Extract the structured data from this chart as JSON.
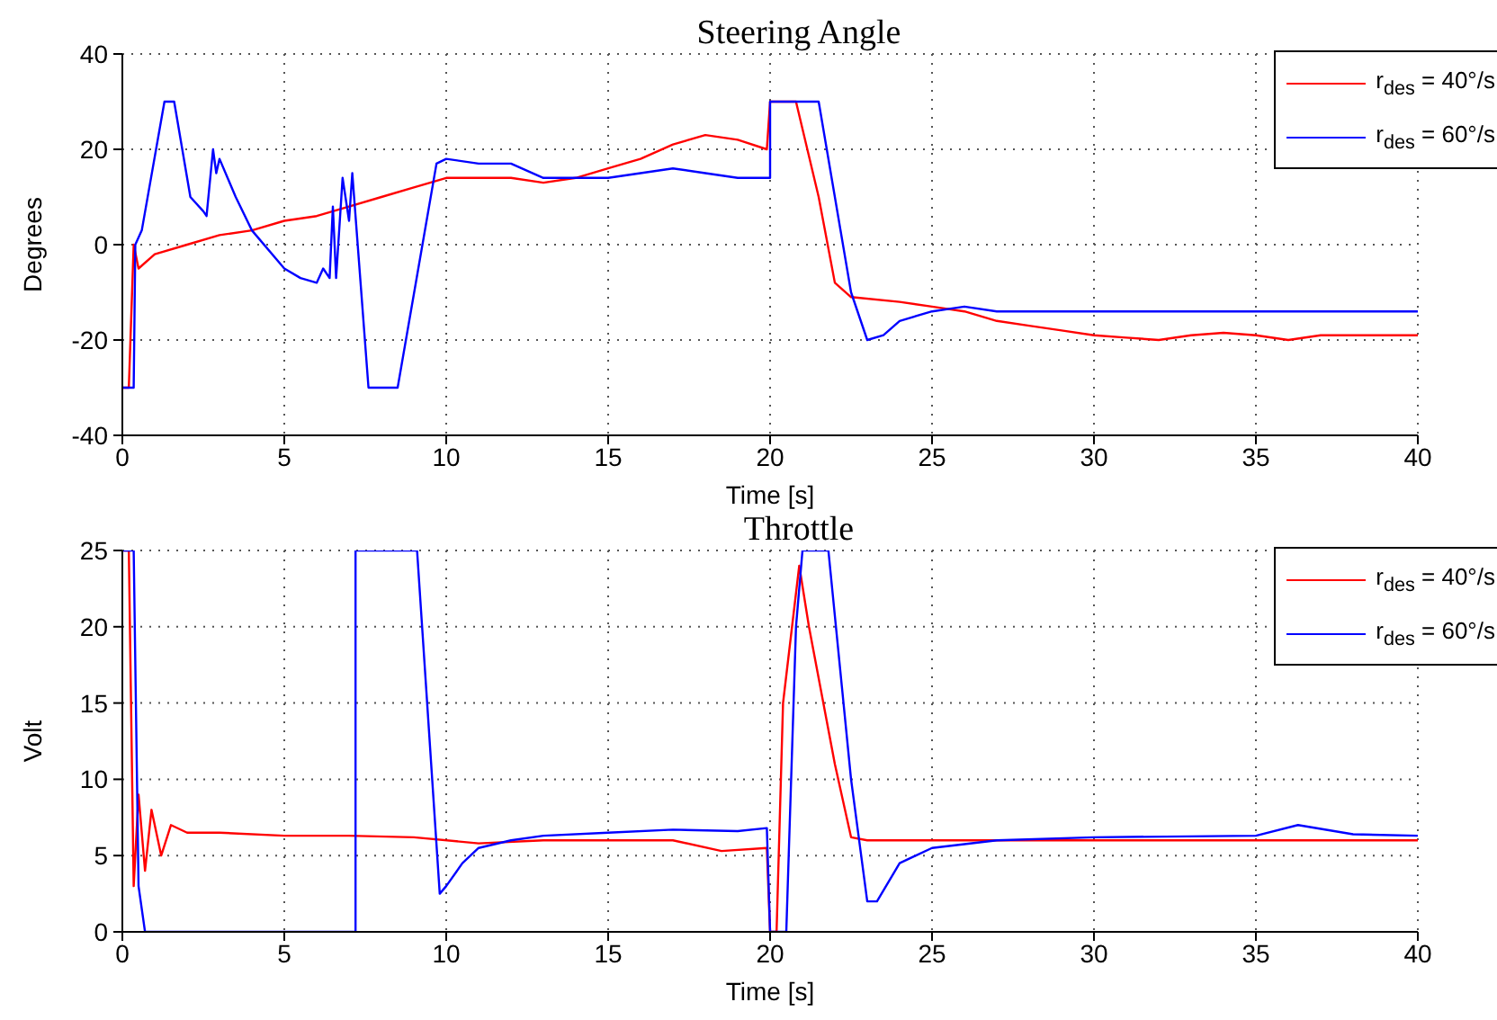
{
  "chart_data": [
    {
      "type": "line",
      "title": "Steering Angle",
      "xlabel": "Time [s]",
      "ylabel": "Degrees",
      "xlim": [
        0,
        40
      ],
      "xticks": [
        0,
        5,
        10,
        15,
        20,
        25,
        30,
        35,
        40
      ],
      "ylim": [
        -40,
        40
      ],
      "yticks": [
        -40,
        -20,
        0,
        20,
        40
      ],
      "grid": true,
      "legend": "top right",
      "marker": "none",
      "line_style": "solid",
      "series": [
        {
          "name": "r$_{des}$ = 40°/s",
          "color": "#ff0000",
          "x": [
            0,
            0.2,
            0.35,
            0.5,
            1,
            2,
            3,
            4,
            5,
            6,
            7,
            8,
            9,
            10,
            11,
            12,
            13,
            14,
            15,
            16,
            17,
            18,
            19,
            19.9,
            20,
            20.8,
            21.5,
            22,
            22.5,
            24,
            25,
            26,
            27,
            28,
            29,
            30,
            31,
            32,
            33,
            34,
            35,
            36,
            37,
            38,
            39,
            40
          ],
          "values": [
            -30,
            -30,
            0,
            -5,
            -2,
            0,
            2,
            3,
            5,
            6,
            8,
            10,
            12,
            14,
            14,
            14,
            13,
            14,
            16,
            18,
            21,
            23,
            22,
            20,
            30,
            30,
            10,
            -8,
            -11,
            -12,
            -13,
            -14,
            -16,
            -17,
            -18,
            -19,
            -19.5,
            -20,
            -19,
            -18.5,
            -19,
            -20,
            -19,
            -19,
            -19,
            -19
          ]
        },
        {
          "name": "r$_{des}$ = 60°/s",
          "color": "#0000ff",
          "x": [
            0,
            0.35,
            0.4,
            0.6,
            1.3,
            1.6,
            2.1,
            2.5,
            2.6,
            2.8,
            2.9,
            3,
            3.5,
            4,
            5,
            5.5,
            6,
            6.2,
            6.4,
            6.5,
            6.6,
            6.8,
            7,
            7.1,
            7.6,
            8.5,
            9.7,
            10,
            11,
            12,
            13,
            14,
            15,
            16,
            17,
            18,
            19,
            20,
            20,
            21.5,
            22,
            22.5,
            23,
            23.5,
            24,
            25,
            26,
            27,
            30,
            32,
            35,
            38,
            40
          ],
          "values": [
            -30,
            -30,
            0,
            3,
            30,
            30,
            10,
            7,
            6,
            20,
            15,
            18,
            10,
            3,
            -5,
            -7,
            -8,
            -5,
            -7,
            8,
            -7,
            14,
            5,
            15,
            -30,
            -30,
            17,
            18,
            17,
            17,
            14,
            14,
            14,
            15,
            16,
            15,
            14,
            14,
            30,
            30,
            10,
            -10,
            -20,
            -19,
            -16,
            -14,
            -13,
            -14,
            -14,
            -14,
            -14,
            -14,
            -14
          ]
        }
      ]
    },
    {
      "type": "line",
      "title": "Throttle",
      "xlabel": "Time [s]",
      "ylabel": "Volt",
      "xlim": [
        0,
        40
      ],
      "xticks": [
        0,
        5,
        10,
        15,
        20,
        25,
        30,
        35,
        40
      ],
      "ylim": [
        0,
        25
      ],
      "yticks": [
        0,
        5,
        10,
        15,
        20,
        25
      ],
      "grid": true,
      "legend": "top right",
      "marker": "none",
      "line_style": "solid",
      "series": [
        {
          "name": "r$_{des}$ = 40°/s",
          "color": "#ff0000",
          "x": [
            0,
            0.2,
            0.35,
            0.5,
            0.7,
            0.9,
            1.2,
            1.5,
            2,
            3,
            5,
            7,
            9,
            11,
            13,
            15,
            17,
            18.5,
            19.9,
            20,
            20.2,
            20.4,
            20.9,
            21.2,
            22,
            22.5,
            23,
            25,
            30,
            35,
            40
          ],
          "values": [
            25,
            25,
            3,
            9,
            4,
            8,
            5,
            7,
            6.5,
            6.5,
            6.3,
            6.3,
            6.2,
            5.8,
            6,
            6,
            6,
            5.3,
            5.5,
            0,
            0,
            15,
            24,
            20,
            11,
            6.2,
            6,
            6,
            6,
            6,
            6
          ]
        },
        {
          "name": "r$_{des}$ = 60°/s",
          "color": "#0000ff",
          "x": [
            0,
            0.35,
            0.5,
            0.7,
            7.2,
            7.2,
            9.1,
            9.8,
            10,
            10.5,
            11,
            12,
            13,
            15,
            17,
            19,
            19.9,
            20,
            20.5,
            20.8,
            21,
            21.8,
            22.5,
            23,
            23.3,
            24,
            25,
            27,
            30,
            35,
            36.3,
            38,
            40
          ],
          "values": [
            25,
            25,
            3,
            0,
            0,
            25,
            25,
            2.5,
            3,
            4.5,
            5.5,
            6,
            6.3,
            6.5,
            6.7,
            6.6,
            6.8,
            0,
            0,
            20,
            25,
            25,
            10,
            2,
            2,
            4.5,
            5.5,
            6,
            6.2,
            6.3,
            7,
            6.4,
            6.3
          ]
        }
      ]
    }
  ]
}
